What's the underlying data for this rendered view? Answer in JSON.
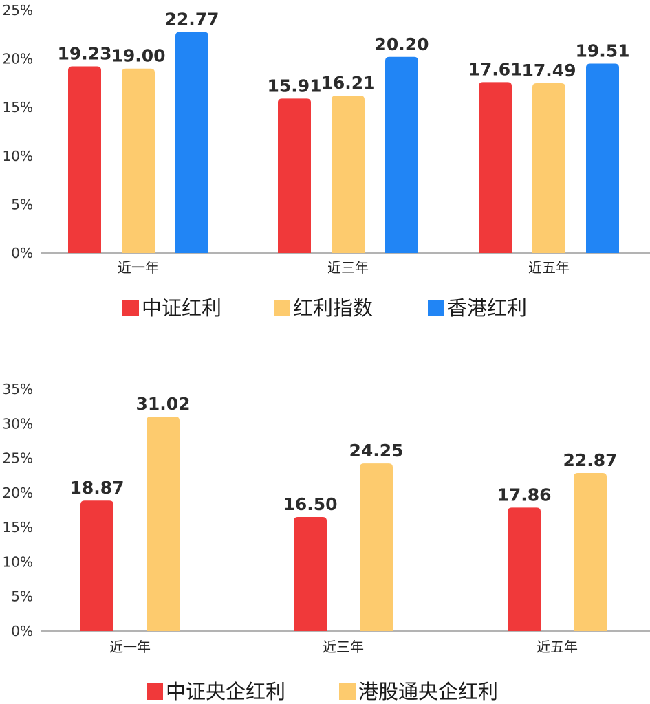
{
  "chart_data": [
    {
      "type": "bar",
      "categories": [
        "近一年",
        "近三年",
        "近五年"
      ],
      "series": [
        {
          "name": "中证红利",
          "color": "#F0393A",
          "values": [
            19.23,
            15.91,
            17.61
          ]
        },
        {
          "name": "红利指数",
          "color": "#FDCB6E",
          "values": [
            19.0,
            16.21,
            17.49
          ]
        },
        {
          "name": "香港红利",
          "color": "#2185F5",
          "values": [
            22.77,
            20.2,
            19.51
          ]
        }
      ],
      "value_labels": [
        [
          "19.23",
          "15.91",
          "17.61"
        ],
        [
          "19.00",
          "16.21",
          "17.49"
        ],
        [
          "22.77",
          "20.20",
          "19.51"
        ]
      ],
      "ylim": [
        0,
        25
      ],
      "yticks": [
        "0%",
        "5%",
        "10%",
        "15%",
        "20%",
        "25%"
      ],
      "title": "",
      "xlabel": "",
      "ylabel": "",
      "legend": "bottom"
    },
    {
      "type": "bar",
      "categories": [
        "近一年",
        "近三年",
        "近五年"
      ],
      "series": [
        {
          "name": "中证央企红利",
          "color": "#F0393A",
          "values": [
            18.87,
            16.5,
            17.86
          ]
        },
        {
          "name": "港股通央企红利",
          "color": "#FDCB6E",
          "values": [
            31.02,
            24.25,
            22.87
          ]
        }
      ],
      "value_labels": [
        [
          "18.87",
          "16.50",
          "17.86"
        ],
        [
          "31.02",
          "24.25",
          "22.87"
        ]
      ],
      "ylim": [
        0,
        35
      ],
      "yticks": [
        "0%",
        "5%",
        "10%",
        "15%",
        "20%",
        "25%",
        "30%",
        "35%"
      ],
      "title": "",
      "xlabel": "",
      "ylabel": "",
      "legend": "bottom"
    }
  ]
}
